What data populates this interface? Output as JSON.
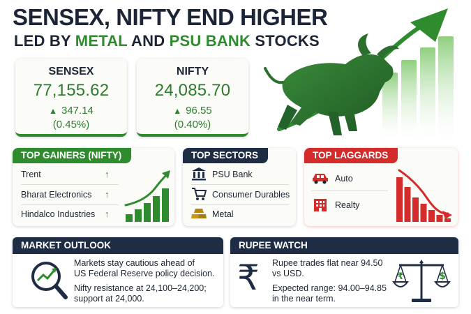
{
  "headline": {
    "line1": "SENSEX, NIFTY END HIGHER",
    "line2_prefix": "LED BY ",
    "line2_metal": "METAL",
    "line2_and": " AND ",
    "line2_psu": "PSU BANK",
    "line2_suffix": " STOCKS"
  },
  "indices": {
    "sensex": {
      "name": "SENSEX",
      "value": "77,155.62",
      "change": "347.14",
      "pct": "(0.45%)"
    },
    "nifty": {
      "name": "NIFTY",
      "value": "24,085.70",
      "change": "96.55",
      "pct": "(0.40%)"
    }
  },
  "top_gainers": {
    "title": "TOP GAINERS (NIFTY)",
    "items": [
      "Trent",
      "Bharat Electronics",
      "Hindalco Industries"
    ],
    "bar_levels": [
      0.18,
      0.3,
      0.45,
      0.62,
      0.8
    ]
  },
  "top_sectors": {
    "title": "TOP SECTORS",
    "items": [
      "PSU Bank",
      "Consumer Durables",
      "Metal"
    ]
  },
  "top_laggards": {
    "title": "TOP LAGGARDS",
    "items": [
      "Auto",
      "Realty"
    ],
    "bar_levels": [
      1.0,
      0.78,
      0.55,
      0.4,
      0.27,
      0.16,
      0.08
    ]
  },
  "market_outlook": {
    "title": "MARKET OUTLOOK",
    "para1": [
      "Markets stay cautious ahead of",
      "US Federal Reserve policy decision."
    ],
    "para2": [
      "Nifty resistance at 24,100–24,200;",
      "support at 24,000."
    ]
  },
  "rupee_watch": {
    "title": "RUPEE WATCH",
    "para1": [
      "Rupee trades flat near 94.50",
      "vs USD."
    ],
    "para2": [
      "Expected range: 94.00–94.85",
      "in the near term."
    ]
  },
  "glyphs": {
    "up_triangle": "▲",
    "up_arrow": "↑",
    "rupee": "₹",
    "dollar": "$"
  },
  "colors": {
    "green": "#2e8b2e",
    "navy": "#1f2d44",
    "red": "#d42b2b"
  },
  "icons": [
    "bank-icon",
    "cart-icon",
    "metal-bars-icon",
    "car-icon",
    "building-icon",
    "magnifier-chart-icon",
    "rupee-icon",
    "scale-icon",
    "bull-icon"
  ]
}
